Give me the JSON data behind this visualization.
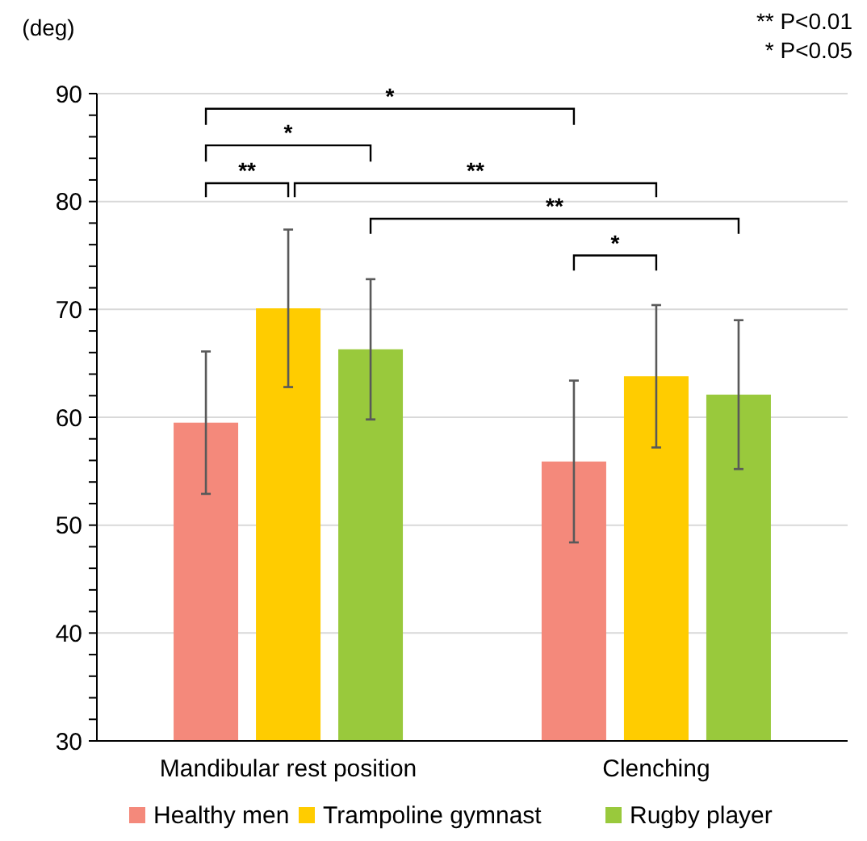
{
  "chart_data": {
    "type": "bar",
    "ylabel": "(deg)",
    "categories": [
      "Mandibular rest position",
      "Clenching"
    ],
    "series": [
      {
        "name": "Healthy men",
        "color": "#f4897b",
        "values": [
          59.5,
          55.9
        ],
        "errors": [
          6.6,
          7.5
        ]
      },
      {
        "name": "Trampoline gymnast",
        "color": "#ffcc00",
        "values": [
          70.1,
          63.8
        ],
        "errors": [
          7.3,
          6.6
        ]
      },
      {
        "name": "Rugby player",
        "color": "#99c93c",
        "values": [
          66.3,
          62.1
        ],
        "errors": [
          6.5,
          6.9
        ]
      }
    ],
    "ylim": [
      30,
      90
    ],
    "yticks": [
      30,
      {
        "value": 32,
        "label": null
      },
      {
        "value": 34,
        "label": null
      },
      {
        "value": 36,
        "label": null
      },
      {
        "value": 38,
        "label": null
      },
      40,
      {
        "value": 42,
        "label": null
      },
      {
        "value": 44,
        "label": null
      },
      {
        "value": 46,
        "label": null
      },
      {
        "value": 48,
        "label": null
      },
      50,
      {
        "value": 52,
        "label": null
      },
      {
        "value": 54,
        "label": null
      },
      {
        "value": 56,
        "label": null
      },
      {
        "value": 58,
        "label": null
      },
      60,
      {
        "value": 62,
        "label": null
      },
      {
        "value": 64,
        "label": null
      },
      {
        "value": 66,
        "label": null
      },
      {
        "value": 68,
        "label": null
      },
      70,
      {
        "value": 72,
        "label": null
      },
      {
        "value": 74,
        "label": null
      },
      {
        "value": 76,
        "label": null
      },
      {
        "value": 78,
        "label": null
      },
      80,
      {
        "value": 82,
        "label": null
      },
      {
        "value": 84,
        "label": null
      },
      {
        "value": 86,
        "label": null
      },
      {
        "value": 88,
        "label": null
      },
      90
    ],
    "grid": "y",
    "legend": "bottom",
    "annotations": [
      "*",
      "*",
      "**",
      "**",
      "**",
      "*",
      "** P<0.01",
      "* P<0.05"
    ]
  }
}
